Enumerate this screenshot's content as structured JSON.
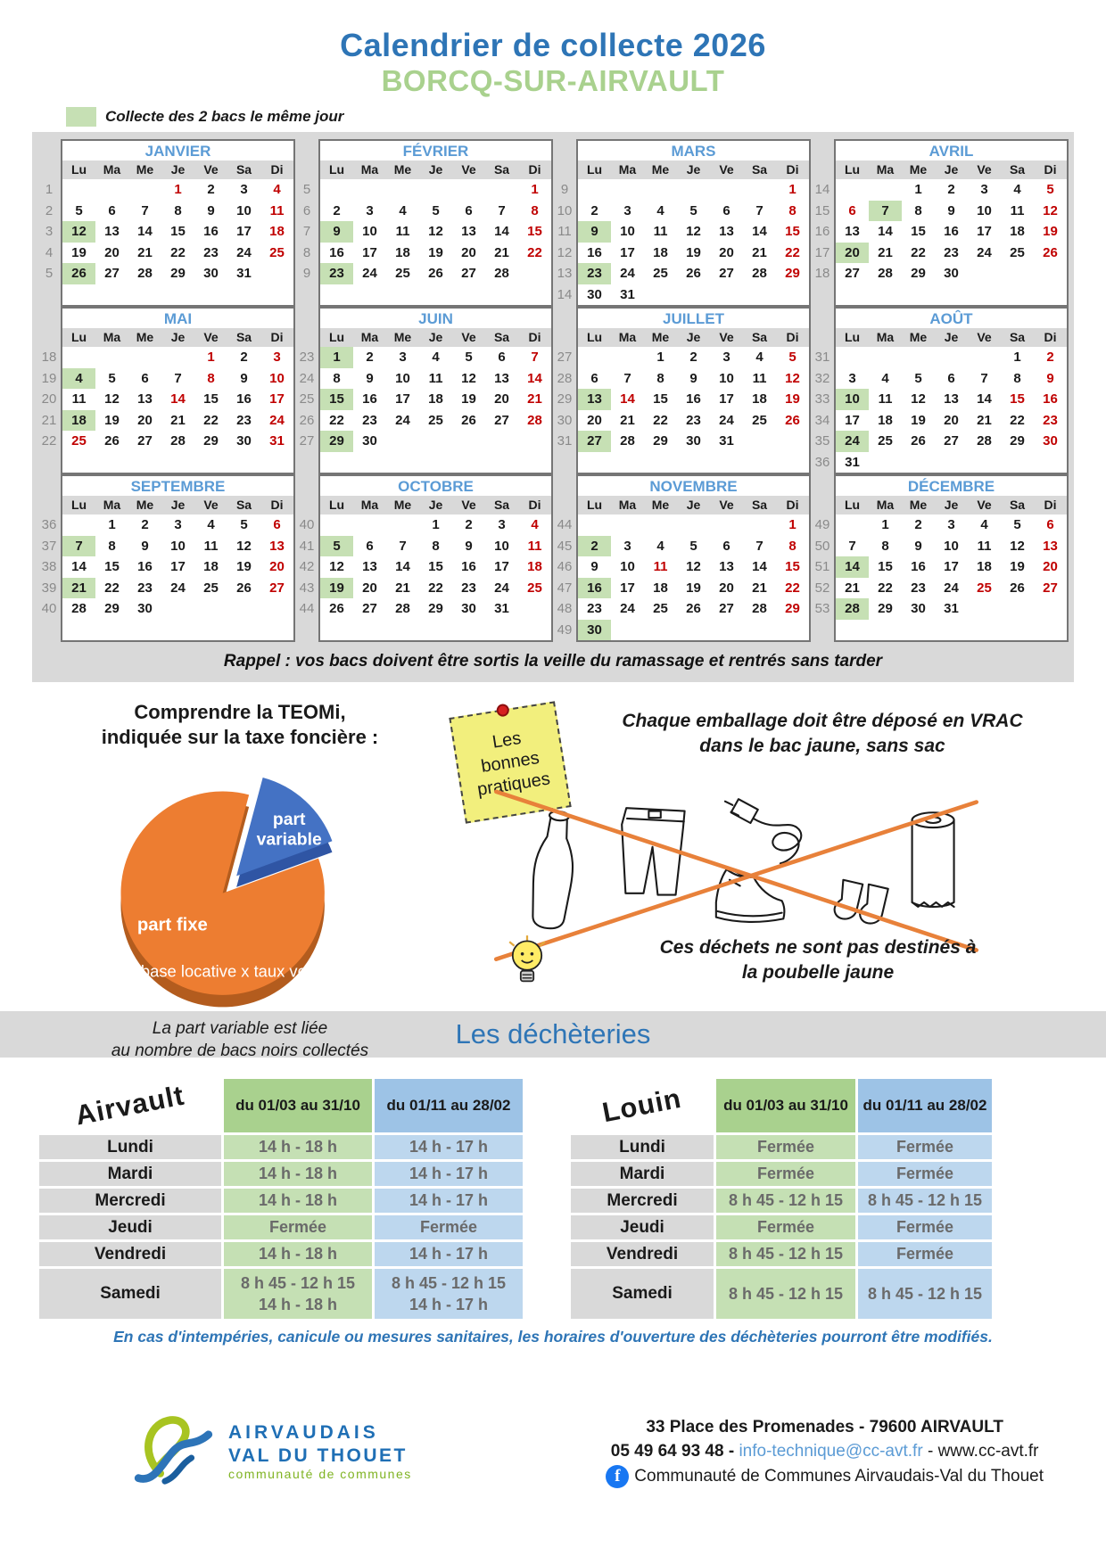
{
  "header": {
    "title": "Calendrier de collecte 2026",
    "commune": "BORCQ-SUR-AIRVAULT"
  },
  "legend": {
    "label": "Collecte des 2 bacs le même jour"
  },
  "colors": {
    "accent_blue": "#2e75b6",
    "month_blue": "#5b9bd5",
    "commune_green": "#a9d18e",
    "collection_green": "#c6e0b4",
    "holiday_red": "#c00000",
    "pie_orange": "#ed7d31",
    "pie_blue": "#4472c4"
  },
  "calendar": {
    "day_headers": [
      "Lu",
      "Ma",
      "Me",
      "Je",
      "Ve",
      "Sa",
      "Di"
    ],
    "reminder": "Rappel : vos bacs doivent être sortis la veille du ramassage et rentrés sans tarder",
    "months": [
      {
        "name": "JANVIER",
        "weeks": [
          {
            "n": 1,
            "d": [
              "",
              "",
              "",
              "1r",
              "2",
              "3",
              "4r"
            ]
          },
          {
            "n": 2,
            "d": [
              "5",
              "6",
              "7",
              "8",
              "9",
              "10",
              "11r"
            ]
          },
          {
            "n": 3,
            "d": [
              "12g",
              "13",
              "14",
              "15",
              "16",
              "17",
              "18r"
            ]
          },
          {
            "n": 4,
            "d": [
              "19",
              "20",
              "21",
              "22",
              "23",
              "24",
              "25r"
            ]
          },
          {
            "n": 5,
            "d": [
              "26g",
              "27",
              "28",
              "29",
              "30",
              "31",
              ""
            ]
          }
        ]
      },
      {
        "name": "FÉVRIER",
        "weeks": [
          {
            "n": 5,
            "d": [
              "",
              "",
              "",
              "",
              "",
              "",
              "1r"
            ]
          },
          {
            "n": 6,
            "d": [
              "2",
              "3",
              "4",
              "5",
              "6",
              "7",
              "8r"
            ]
          },
          {
            "n": 7,
            "d": [
              "9g",
              "10",
              "11",
              "12",
              "13",
              "14",
              "15r"
            ]
          },
          {
            "n": 8,
            "d": [
              "16",
              "17",
              "18",
              "19",
              "20",
              "21",
              "22r"
            ]
          },
          {
            "n": 9,
            "d": [
              "23g",
              "24",
              "25",
              "26",
              "27",
              "28",
              ""
            ]
          }
        ]
      },
      {
        "name": "MARS",
        "weeks": [
          {
            "n": 9,
            "d": [
              "",
              "",
              "",
              "",
              "",
              "",
              "1r"
            ]
          },
          {
            "n": 10,
            "d": [
              "2",
              "3",
              "4",
              "5",
              "6",
              "7",
              "8r"
            ]
          },
          {
            "n": 11,
            "d": [
              "9g",
              "10",
              "11",
              "12",
              "13",
              "14",
              "15r"
            ]
          },
          {
            "n": 12,
            "d": [
              "16",
              "17",
              "18",
              "19",
              "20",
              "21",
              "22r"
            ]
          },
          {
            "n": 13,
            "d": [
              "23g",
              "24",
              "25",
              "26",
              "27",
              "28",
              "29r"
            ]
          },
          {
            "n": 14,
            "d": [
              "30",
              "31",
              "",
              "",
              "",
              "",
              ""
            ]
          }
        ]
      },
      {
        "name": "AVRIL",
        "weeks": [
          {
            "n": 14,
            "d": [
              "",
              "",
              "1",
              "2",
              "3",
              "4",
              "5r"
            ]
          },
          {
            "n": 15,
            "d": [
              "6r",
              "7g",
              "8",
              "9",
              "10",
              "11",
              "12r"
            ]
          },
          {
            "n": 16,
            "d": [
              "13",
              "14",
              "15",
              "16",
              "17",
              "18",
              "19r"
            ]
          },
          {
            "n": 17,
            "d": [
              "20g",
              "21",
              "22",
              "23",
              "24",
              "25",
              "26r"
            ]
          },
          {
            "n": 18,
            "d": [
              "27",
              "28",
              "29",
              "30",
              "",
              "",
              ""
            ]
          }
        ]
      },
      {
        "name": "MAI",
        "weeks": [
          {
            "n": 18,
            "d": [
              "",
              "",
              "",
              "",
              "1r",
              "2",
              "3r"
            ]
          },
          {
            "n": 19,
            "d": [
              "4g",
              "5",
              "6",
              "7",
              "8r",
              "9",
              "10r"
            ]
          },
          {
            "n": 20,
            "d": [
              "11",
              "12",
              "13",
              "14r",
              "15",
              "16",
              "17r"
            ]
          },
          {
            "n": 21,
            "d": [
              "18g",
              "19",
              "20",
              "21",
              "22",
              "23",
              "24r"
            ]
          },
          {
            "n": 22,
            "d": [
              "25r",
              "26",
              "27",
              "28",
              "29",
              "30",
              "31r"
            ]
          }
        ]
      },
      {
        "name": "JUIN",
        "weeks": [
          {
            "n": 23,
            "d": [
              "1g",
              "2",
              "3",
              "4",
              "5",
              "6",
              "7r"
            ]
          },
          {
            "n": 24,
            "d": [
              "8",
              "9",
              "10",
              "11",
              "12",
              "13",
              "14r"
            ]
          },
          {
            "n": 25,
            "d": [
              "15g",
              "16",
              "17",
              "18",
              "19",
              "20",
              "21r"
            ]
          },
          {
            "n": 26,
            "d": [
              "22",
              "23",
              "24",
              "25",
              "26",
              "27",
              "28r"
            ]
          },
          {
            "n": 27,
            "d": [
              "29g",
              "30",
              "",
              "",
              "",
              "",
              ""
            ]
          }
        ]
      },
      {
        "name": "JUILLET",
        "weeks": [
          {
            "n": 27,
            "d": [
              "",
              "",
              "1",
              "2",
              "3",
              "4",
              "5r"
            ]
          },
          {
            "n": 28,
            "d": [
              "6",
              "7",
              "8",
              "9",
              "10",
              "11",
              "12r"
            ]
          },
          {
            "n": 29,
            "d": [
              "13g",
              "14r",
              "15",
              "16",
              "17",
              "18",
              "19r"
            ]
          },
          {
            "n": 30,
            "d": [
              "20",
              "21",
              "22",
              "23",
              "24",
              "25",
              "26r"
            ]
          },
          {
            "n": 31,
            "d": [
              "27g",
              "28",
              "29",
              "30",
              "31",
              "",
              ""
            ]
          }
        ]
      },
      {
        "name": "AOÛT",
        "weeks": [
          {
            "n": 31,
            "d": [
              "",
              "",
              "",
              "",
              "",
              "1",
              "2r"
            ]
          },
          {
            "n": 32,
            "d": [
              "3",
              "4",
              "5",
              "6",
              "7",
              "8",
              "9r"
            ]
          },
          {
            "n": 33,
            "d": [
              "10g",
              "11",
              "12",
              "13",
              "14",
              "15r",
              "16r"
            ]
          },
          {
            "n": 34,
            "d": [
              "17",
              "18",
              "19",
              "20",
              "21",
              "22",
              "23r"
            ]
          },
          {
            "n": 35,
            "d": [
              "24g",
              "25",
              "26",
              "27",
              "28",
              "29",
              "30r"
            ]
          },
          {
            "n": 36,
            "d": [
              "31",
              "",
              "",
              "",
              "",
              "",
              ""
            ]
          }
        ]
      },
      {
        "name": "SEPTEMBRE",
        "weeks": [
          {
            "n": 36,
            "d": [
              "",
              "1",
              "2",
              "3",
              "4",
              "5",
              "6r"
            ]
          },
          {
            "n": 37,
            "d": [
              "7g",
              "8",
              "9",
              "10",
              "11",
              "12",
              "13r"
            ]
          },
          {
            "n": 38,
            "d": [
              "14",
              "15",
              "16",
              "17",
              "18",
              "19",
              "20r"
            ]
          },
          {
            "n": 39,
            "d": [
              "21g",
              "22",
              "23",
              "24",
              "25",
              "26",
              "27r"
            ]
          },
          {
            "n": 40,
            "d": [
              "28",
              "29",
              "30",
              "",
              "",
              "",
              ""
            ]
          }
        ]
      },
      {
        "name": "OCTOBRE",
        "weeks": [
          {
            "n": 40,
            "d": [
              "",
              "",
              "",
              "1",
              "2",
              "3",
              "4r"
            ]
          },
          {
            "n": 41,
            "d": [
              "5g",
              "6",
              "7",
              "8",
              "9",
              "10",
              "11r"
            ]
          },
          {
            "n": 42,
            "d": [
              "12",
              "13",
              "14",
              "15",
              "16",
              "17",
              "18r"
            ]
          },
          {
            "n": 43,
            "d": [
              "19g",
              "20",
              "21",
              "22",
              "23",
              "24",
              "25r"
            ]
          },
          {
            "n": 44,
            "d": [
              "26",
              "27",
              "28",
              "29",
              "30",
              "31",
              ""
            ]
          }
        ]
      },
      {
        "name": "NOVEMBRE",
        "weeks": [
          {
            "n": 44,
            "d": [
              "",
              "",
              "",
              "",
              "",
              "",
              "1r"
            ]
          },
          {
            "n": 45,
            "d": [
              "2g",
              "3",
              "4",
              "5",
              "6",
              "7",
              "8r"
            ]
          },
          {
            "n": 46,
            "d": [
              "9",
              "10",
              "11r",
              "12",
              "13",
              "14",
              "15r"
            ]
          },
          {
            "n": 47,
            "d": [
              "16g",
              "17",
              "18",
              "19",
              "20",
              "21",
              "22r"
            ]
          },
          {
            "n": 48,
            "d": [
              "23",
              "24",
              "25",
              "26",
              "27",
              "28",
              "29r"
            ]
          },
          {
            "n": 49,
            "d": [
              "30g",
              "",
              "",
              "",
              "",
              "",
              ""
            ]
          }
        ]
      },
      {
        "name": "DÉCEMBRE",
        "weeks": [
          {
            "n": 49,
            "d": [
              "",
              "1",
              "2",
              "3",
              "4",
              "5",
              "6r"
            ]
          },
          {
            "n": 50,
            "d": [
              "7",
              "8",
              "9",
              "10",
              "11",
              "12",
              "13r"
            ]
          },
          {
            "n": 51,
            "d": [
              "14g",
              "15",
              "16",
              "17",
              "18",
              "19",
              "20r"
            ]
          },
          {
            "n": 52,
            "d": [
              "21",
              "22",
              "23",
              "24",
              "25r",
              "26",
              "27r"
            ]
          },
          {
            "n": 53,
            "d": [
              "28g",
              "29",
              "30",
              "31",
              "",
              "",
              ""
            ]
          }
        ]
      }
    ]
  },
  "teomi": {
    "title1": "Comprendre la TEOMi,",
    "title2": "indiquée sur la taxe foncière :",
    "pie_fixed": "part fixe",
    "pie_formula": "= base locative x taux voté",
    "pie_var1": "part",
    "pie_var2": "variable",
    "caption1": "La part variable est liée",
    "caption2": "au nombre de bacs noirs collectés"
  },
  "practices": {
    "sticky1": "Les",
    "sticky2": "bonnes",
    "sticky3": "pratiques",
    "vrac1": "Chaque emballage doit être déposé en VRAC",
    "vrac2": "dans le bac jaune, sans sac",
    "warn1": "Ces déchets ne sont pas destinés à",
    "warn2": "la poubelle jaune"
  },
  "dechetteries": {
    "title": "Les déchèteries",
    "col_summer": "du 01/03 au 31/10",
    "col_winter": "du 01/11 au 28/02",
    "note": "En cas d'intempéries, canicule ou mesures sanitaires, les horaires d'ouverture des déchèteries pourront être modifiés.",
    "sites": [
      {
        "name": "Airvault",
        "rows": [
          {
            "day": "Lundi",
            "summer": [
              "14 h - 18 h"
            ],
            "winter": [
              "14 h - 17 h"
            ]
          },
          {
            "day": "Mardi",
            "summer": [
              "14 h - 18 h"
            ],
            "winter": [
              "14 h - 17 h"
            ]
          },
          {
            "day": "Mercredi",
            "summer": [
              "14 h - 18 h"
            ],
            "winter": [
              "14 h - 17 h"
            ]
          },
          {
            "day": "Jeudi",
            "summer": [
              "Fermée"
            ],
            "winter": [
              "Fermée"
            ]
          },
          {
            "day": "Vendredi",
            "summer": [
              "14 h - 18 h"
            ],
            "winter": [
              "14 h - 17 h"
            ]
          },
          {
            "day": "Samedi",
            "summer": [
              "8 h 45 - 12 h 15",
              "14 h - 18 h"
            ],
            "winter": [
              "8 h 45 - 12 h 15",
              "14 h - 17 h"
            ]
          }
        ]
      },
      {
        "name": "Louin",
        "rows": [
          {
            "day": "Lundi",
            "summer": [
              "Fermée"
            ],
            "winter": [
              "Fermée"
            ]
          },
          {
            "day": "Mardi",
            "summer": [
              "Fermée"
            ],
            "winter": [
              "Fermée"
            ]
          },
          {
            "day": "Mercredi",
            "summer": [
              "8 h 45 - 12 h 15"
            ],
            "winter": [
              "8 h 45 - 12 h 15"
            ]
          },
          {
            "day": "Jeudi",
            "summer": [
              "Fermée"
            ],
            "winter": [
              "Fermée"
            ]
          },
          {
            "day": "Vendredi",
            "summer": [
              "8 h 45 - 12 h 15"
            ],
            "winter": [
              "Fermée"
            ]
          },
          {
            "day": "Samedi",
            "summer": [
              "8 h 45 - 12 h 15"
            ],
            "winter": [
              "8 h 45 - 12 h 15"
            ]
          }
        ]
      }
    ]
  },
  "footer": {
    "org1": "AIRVAUDAIS",
    "org2": "VAL DU THOUET",
    "org3": "communauté de communes",
    "address": "33 Place des Promenades - 79600 AIRVAULT",
    "phone": "05 49 64 93 48",
    "separator": "-",
    "email": "info-technique@cc-avt.fr",
    "website": "www.cc-avt.fr",
    "facebook": "Communauté de Communes Airvaudais-Val du Thouet"
  }
}
